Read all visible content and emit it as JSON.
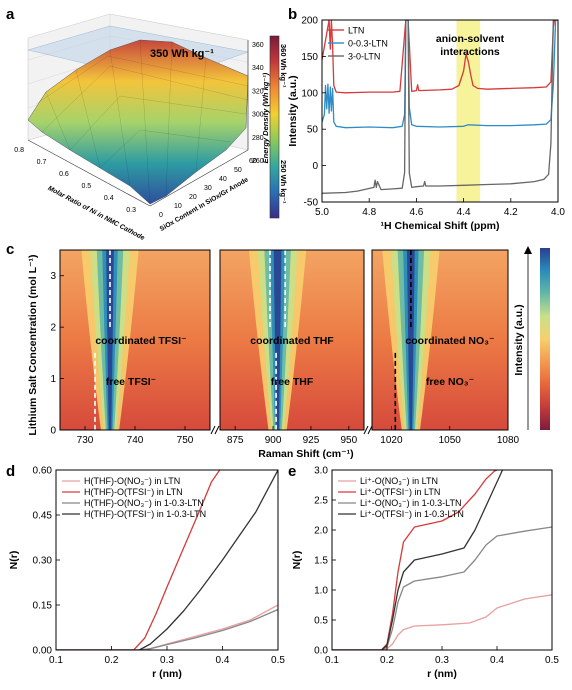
{
  "panel_labels": {
    "a": "a",
    "b": "b",
    "c": "c",
    "d": "d",
    "e": "e"
  },
  "chart_data": [
    {
      "panel": "a",
      "type": "surface3d",
      "x_axis_label": "Molar Ratio of Ni in NMC Cathode",
      "x_ticks": [
        "0.8",
        "0.7",
        "0.6",
        "0.5",
        "0.4",
        "0.3"
      ],
      "y_axis_label": "SiO$_x$ Content in SiO$_x$/Gr Anode",
      "y_axis_label_display": "SiOx Content in SiOx/Gr Anode",
      "y_ticks": [
        "0",
        "10",
        "20",
        "30",
        "40",
        "50",
        "60"
      ],
      "z_axis_label": "Energy Density (Wh kg⁻¹)",
      "z_ticks": [
        "260",
        "280",
        "300",
        "320",
        "340",
        "360"
      ],
      "annotation": "350 Wh kg⁻¹",
      "colorbar": {
        "max_label": "360 Wh kg⁻¹",
        "min_label": "250 Wh kg⁻¹",
        "colors": [
          "#3b2e86",
          "#2a6fb5",
          "#36a89b",
          "#8dc95a",
          "#f2d032",
          "#ee8a36",
          "#c23a3a",
          "#7a1a3a"
        ]
      }
    },
    {
      "panel": "b",
      "type": "line",
      "xlabel": "¹H Chemical Shift (ppm)",
      "ylabel": "Intensity (a.u.)",
      "xlim": [
        5.0,
        4.0
      ],
      "ylim": [
        -50,
        200
      ],
      "x_ticks": [
        "5.0",
        "4.8",
        "4.6",
        "4.4",
        "4.2",
        "4.0"
      ],
      "y_ticks": [
        "-50",
        "0",
        "50",
        "100",
        "150",
        "200"
      ],
      "annotation": "anion-solvent interactions",
      "annotation_lines": [
        "anion-solvent",
        "interactions"
      ],
      "highlight_band": [
        4.43,
        4.33
      ],
      "legend": "top-left",
      "series": [
        {
          "name": "LTN",
          "color": "#d63a3a",
          "x": [
            5.0,
            4.97,
            4.965,
            4.96,
            4.955,
            4.95,
            4.94,
            4.9,
            4.8,
            4.7,
            4.67,
            4.655,
            4.645,
            4.64,
            4.635,
            4.62,
            4.6,
            4.595,
            4.59,
            4.5,
            4.45,
            4.42,
            4.4,
            4.39,
            4.38,
            4.37,
            4.36,
            4.34,
            4.3,
            4.2,
            4.1,
            4.05,
            4.03,
            4.02,
            4.015,
            4.01,
            4.0
          ],
          "y": [
            145,
            200,
            160,
            200,
            165,
            110,
            101,
            100,
            101,
            101,
            102,
            160,
            200,
            200,
            200,
            102,
            103,
            111,
            103,
            104,
            105,
            110,
            130,
            153,
            143,
            125,
            110,
            106,
            105,
            106,
            107,
            108,
            115,
            190,
            200,
            200,
            200
          ]
        },
        {
          "name": "0-0.3-LTN",
          "color": "#2d8cc4",
          "x": [
            5.0,
            4.99,
            4.985,
            4.98,
            4.975,
            4.97,
            4.965,
            4.96,
            4.955,
            4.95,
            4.94,
            4.9,
            4.8,
            4.7,
            4.66,
            4.65,
            4.645,
            4.64,
            4.635,
            4.63,
            4.62,
            4.6,
            4.5,
            4.4,
            4.38,
            4.3,
            4.2,
            4.1,
            4.05,
            4.03,
            4.02,
            4.01,
            4.0
          ],
          "y": [
            60,
            70,
            110,
            78,
            112,
            72,
            108,
            75,
            106,
            60,
            54,
            52,
            53,
            52,
            54,
            70,
            200,
            200,
            200,
            80,
            56,
            54,
            53,
            54,
            56,
            55,
            55,
            56,
            57,
            63,
            110,
            200,
            200
          ]
        },
        {
          "name": "3-0-LTN",
          "color": "#666666",
          "x": [
            5.0,
            4.9,
            4.85,
            4.78,
            4.775,
            4.77,
            4.765,
            4.75,
            4.7,
            4.66,
            4.65,
            4.645,
            4.64,
            4.635,
            4.63,
            4.62,
            4.6,
            4.57,
            4.565,
            4.56,
            4.5,
            4.4,
            4.3,
            4.2,
            4.1,
            4.06,
            4.04,
            4.03,
            4.02,
            4.01,
            4.0
          ],
          "y": [
            -38,
            -37,
            -35,
            -30,
            -20,
            -30,
            -22,
            -33,
            -32,
            -31,
            -10,
            200,
            200,
            200,
            -10,
            -30,
            -29,
            -28,
            -22,
            -28,
            -28,
            -27,
            -26,
            -25,
            -22,
            -19,
            -12,
            30,
            200,
            200,
            200
          ]
        }
      ]
    },
    {
      "panel": "c",
      "type": "heatmap",
      "ylabel": "Lithium Salt Concentration (mol L⁻¹)",
      "xlabel": "Raman Shift (cm⁻¹)",
      "ylim": [
        0,
        3.5
      ],
      "y_ticks": [
        "0",
        "1",
        "2",
        "3"
      ],
      "colorbar_label": "Intensity (a.u.)",
      "colormap": [
        "#7b1d3d",
        "#c53a3a",
        "#e8663a",
        "#f39a50",
        "#f7cf6e",
        "#c7e08a",
        "#64b8a6",
        "#2a8cbb",
        "#2a3f8f"
      ],
      "subpanels": [
        {
          "xlim": [
            725,
            755
          ],
          "x_ticks": [
            "730",
            "740",
            "750"
          ],
          "coordinated_label": "coordinated TFSI⁻",
          "free_label": "free TFSI⁻",
          "coordinated_peak": 735,
          "free_peak": 732
        },
        {
          "xlim": [
            865,
            960
          ],
          "x_ticks": [
            "875",
            "900",
            "925",
            "950"
          ],
          "coordinated_label": "coordinated THF",
          "free_label": "free THF",
          "coordinated_peak": [
            898,
            908
          ],
          "free_peak": 902
        },
        {
          "xlim": [
            1010,
            1080
          ],
          "x_ticks": [
            "1020",
            "1050",
            "1080"
          ],
          "coordinated_label": "coordinated NO₃⁻",
          "free_label": "free NO₃⁻",
          "coordinated_peak": 1030,
          "free_peak": 1022
        }
      ]
    },
    {
      "panel": "d",
      "type": "line",
      "xlabel": "r (nm)",
      "ylabel": "N(r)",
      "xlim": [
        0.1,
        0.5
      ],
      "ylim": [
        0,
        0.6
      ],
      "x_ticks": [
        "0.1",
        "0.2",
        "0.3",
        "0.4",
        "0.5"
      ],
      "y_ticks": [
        "0.00",
        "0.15",
        "0.30",
        "0.45",
        "0.60"
      ],
      "legend": "top-left",
      "series": [
        {
          "name": "H(THF)-O(NO₃⁻) in LTN",
          "color": "#e8a0a0",
          "x": [
            0.1,
            0.25,
            0.27,
            0.3,
            0.35,
            0.4,
            0.45,
            0.5
          ],
          "y": [
            0,
            0,
            0.005,
            0.02,
            0.045,
            0.07,
            0.1,
            0.15
          ]
        },
        {
          "name": "H(THF)-O(TFSI⁻) in LTN",
          "color": "#d63a3a",
          "x": [
            0.1,
            0.24,
            0.26,
            0.28,
            0.3,
            0.33,
            0.36,
            0.38,
            0.395
          ],
          "y": [
            0,
            0,
            0.04,
            0.12,
            0.21,
            0.34,
            0.47,
            0.56,
            0.6
          ]
        },
        {
          "name": "H(THF)-O(NO₃⁻) in 1-0.3-LTN",
          "color": "#888888",
          "x": [
            0.1,
            0.25,
            0.27,
            0.3,
            0.35,
            0.4,
            0.45,
            0.5
          ],
          "y": [
            0,
            0,
            0.004,
            0.018,
            0.04,
            0.065,
            0.095,
            0.135
          ]
        },
        {
          "name": "H(THF)-O(TFSI⁻) in 1-0.3-LTN",
          "color": "#333333",
          "x": [
            0.1,
            0.25,
            0.27,
            0.3,
            0.33,
            0.36,
            0.4,
            0.43,
            0.46,
            0.5
          ],
          "y": [
            0,
            0,
            0.02,
            0.07,
            0.13,
            0.2,
            0.3,
            0.38,
            0.46,
            0.6
          ]
        }
      ]
    },
    {
      "panel": "e",
      "type": "line",
      "xlabel": "r (nm)",
      "ylabel": "N(r)",
      "xlim": [
        0.1,
        0.5
      ],
      "ylim": [
        0,
        3.0
      ],
      "x_ticks": [
        "0.1",
        "0.2",
        "0.3",
        "0.4",
        "0.5"
      ],
      "y_ticks": [
        "0.0",
        "0.5",
        "1.0",
        "1.5",
        "2.0",
        "2.5",
        "3.0"
      ],
      "legend": "top-left",
      "series": [
        {
          "name": "Li⁺-O(NO₃⁻) in LTN",
          "color": "#e8a0a0",
          "x": [
            0.1,
            0.19,
            0.2,
            0.21,
            0.22,
            0.23,
            0.25,
            0.3,
            0.35,
            0.38,
            0.4,
            0.45,
            0.5
          ],
          "y": [
            0,
            0,
            0.02,
            0.1,
            0.25,
            0.34,
            0.4,
            0.42,
            0.45,
            0.55,
            0.7,
            0.85,
            0.92
          ]
        },
        {
          "name": "Li⁺-O(TFSI⁻) in LTN",
          "color": "#d63a3a",
          "x": [
            0.1,
            0.19,
            0.2,
            0.21,
            0.22,
            0.23,
            0.25,
            0.3,
            0.33,
            0.36,
            0.38,
            0.395,
            0.4
          ],
          "y": [
            0,
            0,
            0.1,
            0.6,
            1.3,
            1.8,
            2.05,
            2.15,
            2.3,
            2.6,
            2.85,
            2.98,
            3.0
          ]
        },
        {
          "name": "Li⁺-O(NO₃⁻) in 1-0.3-LTN",
          "color": "#888888",
          "x": [
            0.1,
            0.19,
            0.2,
            0.21,
            0.22,
            0.23,
            0.25,
            0.3,
            0.34,
            0.36,
            0.38,
            0.4,
            0.45,
            0.5
          ],
          "y": [
            0,
            0,
            0.05,
            0.35,
            0.8,
            1.05,
            1.15,
            1.22,
            1.3,
            1.5,
            1.75,
            1.9,
            1.98,
            2.05
          ]
        },
        {
          "name": "Li⁺-O(TFSI⁻) in 1-0.3-LTN",
          "color": "#333333",
          "x": [
            0.1,
            0.19,
            0.2,
            0.21,
            0.22,
            0.23,
            0.25,
            0.3,
            0.34,
            0.36,
            0.38,
            0.4,
            0.41
          ],
          "y": [
            0,
            0,
            0.08,
            0.5,
            1.0,
            1.3,
            1.5,
            1.6,
            1.7,
            2.0,
            2.4,
            2.8,
            3.0
          ]
        }
      ]
    }
  ]
}
